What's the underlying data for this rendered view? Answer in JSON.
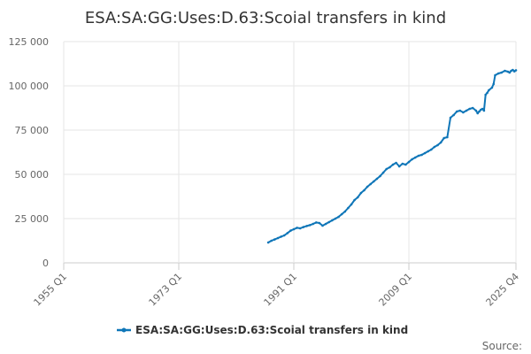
{
  "chart_data": {
    "type": "line",
    "title": "ESA:SA:GG:Uses:D.63:Scoial transfers in kind",
    "xlabel": "",
    "ylabel": "",
    "x_range": [
      1955,
      2025.75
    ],
    "ylim": [
      0,
      125000
    ],
    "y_ticks": [
      0,
      25000,
      50000,
      75000,
      100000,
      125000
    ],
    "y_tick_labels": [
      "0",
      "25 000",
      "50 000",
      "75 000",
      "100 000",
      "125 000"
    ],
    "x_ticks": [
      1955,
      1973,
      1991,
      2009,
      2025.75
    ],
    "x_tick_labels": [
      "1955 Q1",
      "1973 Q1",
      "1991 Q1",
      "2009 Q1",
      "2025 Q4"
    ],
    "grid": true,
    "legend_position": "bottom",
    "source_label": "Source:",
    "series": [
      {
        "name": "ESA:SA:GG:Uses:D.63:Scoial transfers in kind",
        "color": "#0f76b8",
        "x": [
          1987.0,
          1987.5,
          1988.0,
          1988.5,
          1989.0,
          1989.5,
          1990.0,
          1990.5,
          1991.0,
          1991.5,
          1992.0,
          1992.5,
          1993.0,
          1993.5,
          1994.0,
          1994.5,
          1995.0,
          1995.5,
          1996.0,
          1996.5,
          1997.0,
          1997.5,
          1998.0,
          1998.5,
          1999.0,
          1999.5,
          2000.0,
          2000.5,
          2001.0,
          2001.5,
          2002.0,
          2002.5,
          2003.0,
          2003.5,
          2004.0,
          2004.5,
          2005.0,
          2005.5,
          2006.0,
          2006.5,
          2007.0,
          2007.5,
          2008.0,
          2008.5,
          2009.0,
          2009.5,
          2010.0,
          2010.5,
          2011.0,
          2011.5,
          2012.0,
          2012.5,
          2013.0,
          2013.5,
          2014.0,
          2014.5,
          2015.0,
          2015.5,
          2016.0,
          2016.5,
          2017.0,
          2017.5,
          2018.0,
          2018.5,
          2019.0,
          2019.5,
          2019.75,
          2020.0,
          2020.25,
          2020.5,
          2020.75,
          2021.0,
          2021.25,
          2021.5,
          2022.0,
          2022.25,
          2022.5,
          2023.0,
          2023.5,
          2024.0,
          2024.5,
          2024.75,
          2025.0,
          2025.25,
          2025.5,
          2025.75
        ],
        "values": [
          11500,
          12500,
          13200,
          14000,
          14800,
          15500,
          16800,
          18200,
          19000,
          19800,
          19500,
          20200,
          20800,
          21300,
          22000,
          22800,
          22500,
          21000,
          22000,
          23000,
          24000,
          25000,
          26000,
          27500,
          29000,
          31000,
          33000,
          35500,
          37000,
          39500,
          41000,
          43000,
          44500,
          46000,
          47500,
          49000,
          51000,
          53000,
          54000,
          55500,
          56500,
          54500,
          56000,
          55500,
          57000,
          58500,
          59500,
          60500,
          61000,
          62000,
          63000,
          64000,
          65500,
          66500,
          68000,
          70500,
          71000,
          82000,
          83500,
          85500,
          86000,
          85000,
          86000,
          87000,
          87500,
          86000,
          84500,
          85500,
          86500,
          87000,
          86000,
          95000,
          96000,
          97500,
          99000,
          101000,
          106000,
          107000,
          107500,
          108500,
          108000,
          107500,
          108500,
          109000,
          108200,
          108800
        ]
      }
    ]
  }
}
